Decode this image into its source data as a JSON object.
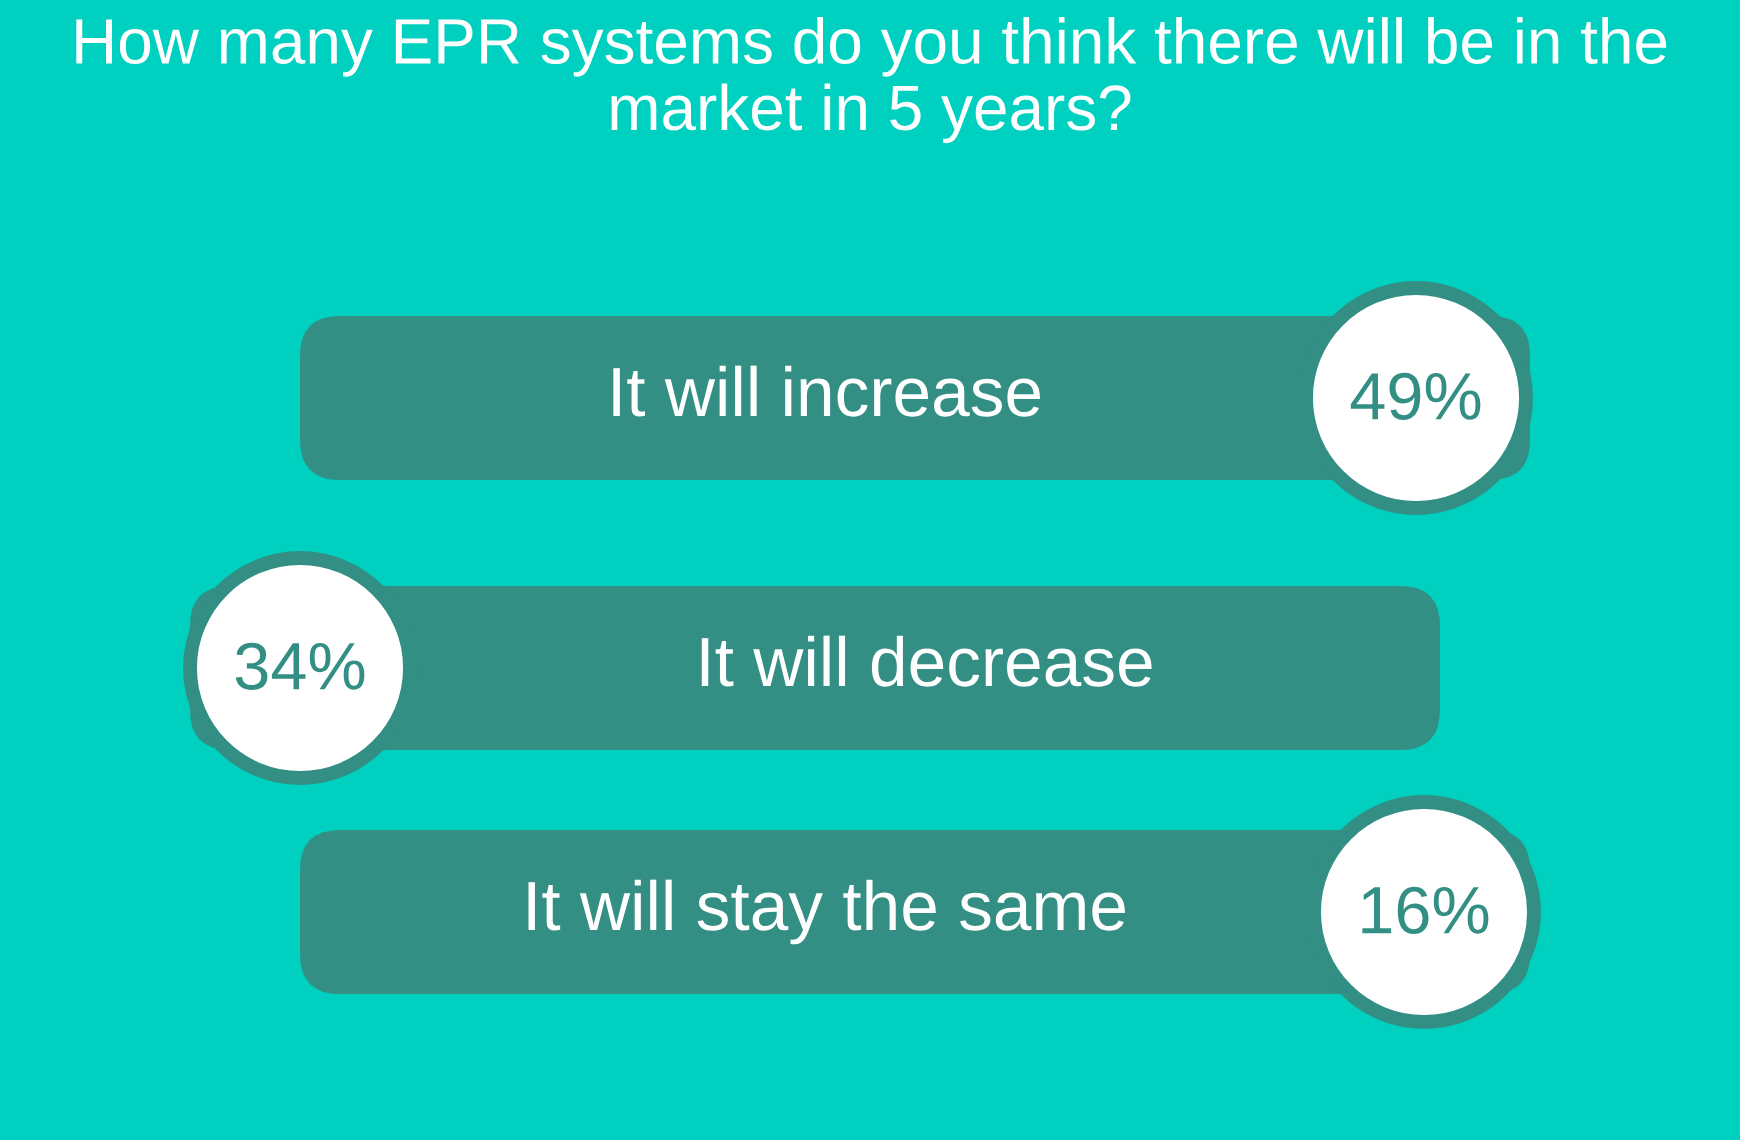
{
  "chart_data": {
    "type": "other",
    "title": "How many EPR systems do you think there will be in the market in 5 years?",
    "categories": [
      "It will increase",
      "It will decrease",
      "It will stay the same"
    ],
    "values": [
      49,
      34,
      16
    ],
    "value_labels": [
      "49%",
      "34%",
      "16%"
    ],
    "color": "#338f84"
  }
}
